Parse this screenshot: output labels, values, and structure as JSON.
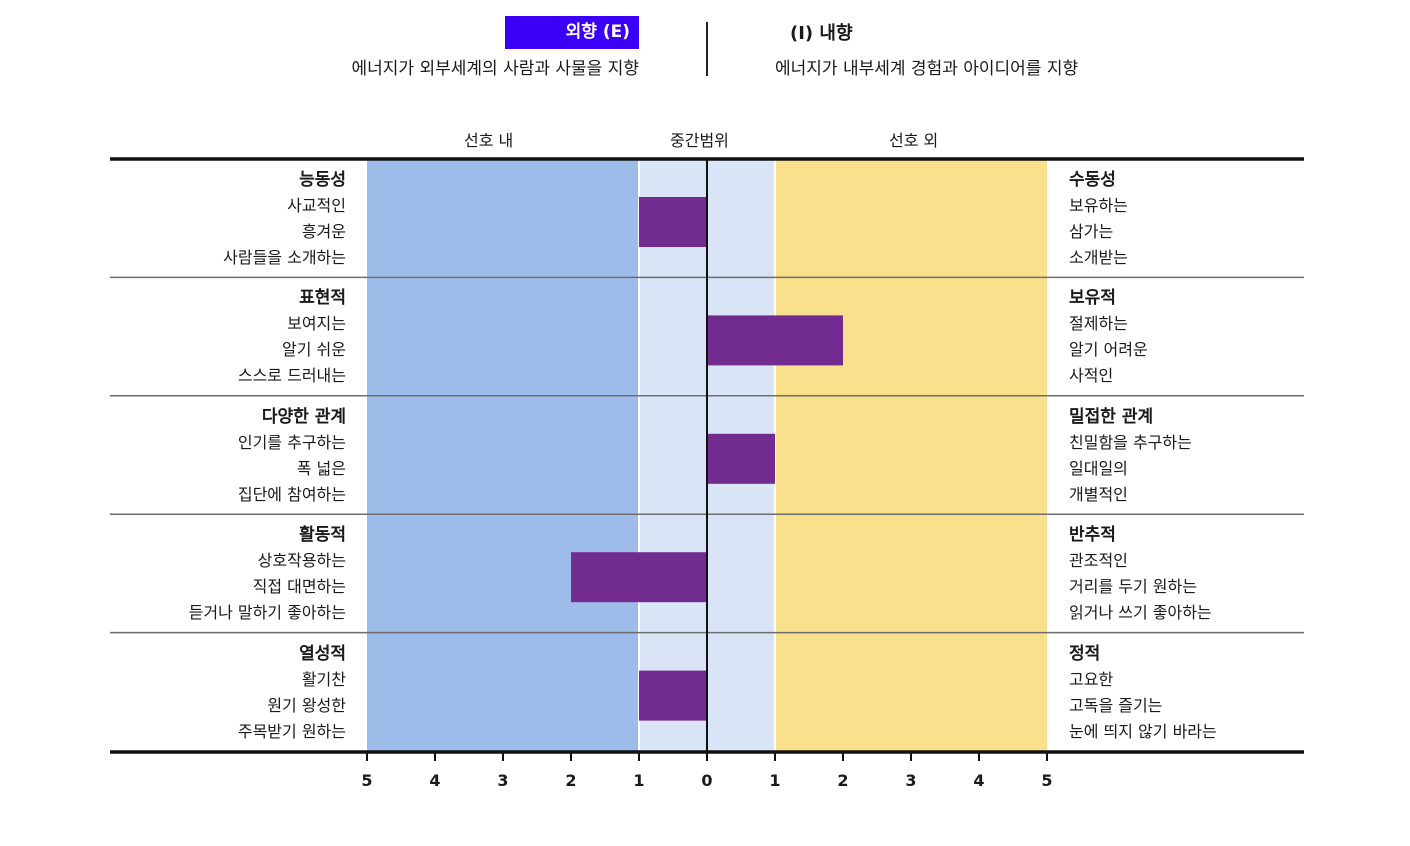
{
  "header": {
    "left_badge": "외향 (E)",
    "left_desc": "에너지가 외부세계의 사람과 사물을 지향",
    "right_label": "(I) 내향",
    "right_desc": "에너지가 내부세계 경험과 아이디어를 지향"
  },
  "bands": {
    "left": "선호 내",
    "middle": "중간범위",
    "right": "선호 외"
  },
  "colors": {
    "left_pref": "#9dbce9",
    "mid_range": "#d9e5f6",
    "right_pref": "#f9e08c",
    "bar": "#722b8f",
    "badge": "#3b00f6"
  },
  "rows": [
    {
      "left_title": "능동성",
      "left_lines": [
        "사교적인",
        "흥겨운",
        "사람들을 소개하는"
      ],
      "right_title": "수동성",
      "right_lines": [
        "보유하는",
        "삼가는",
        "소개받는"
      ]
    },
    {
      "left_title": "표현적",
      "left_lines": [
        "보여지는",
        "알기 쉬운",
        "스스로 드러내는"
      ],
      "right_title": "보유적",
      "right_lines": [
        "절제하는",
        "알기 어려운",
        "사적인"
      ]
    },
    {
      "left_title": "다양한 관계",
      "left_lines": [
        "인기를 추구하는",
        "폭 넓은",
        "집단에 참여하는"
      ],
      "right_title": "밀접한 관계",
      "right_lines": [
        "친밀함을 추구하는",
        "일대일의",
        "개별적인"
      ]
    },
    {
      "left_title": "활동적",
      "left_lines": [
        "상호작용하는",
        "직접 대면하는",
        "듣거나 말하기 좋아하는"
      ],
      "right_title": "반추적",
      "right_lines": [
        "관조적인",
        "거리를 두기 원하는",
        "읽거나 쓰기 좋아하는"
      ]
    },
    {
      "left_title": "열성적",
      "left_lines": [
        "활기찬",
        "원기 왕성한",
        "주목받기 원하는"
      ],
      "right_title": "정적",
      "right_lines": [
        "고요한",
        "고독을 즐기는",
        "눈에 띄지 않기 바라는"
      ]
    }
  ],
  "chart_data": {
    "type": "bar",
    "orientation": "horizontal",
    "categories": [
      "능동성 - 수동성",
      "표현적 - 보유적",
      "다양한 관계 - 밀접한 관계",
      "활동적 - 반추적",
      "열성적 - 정적"
    ],
    "values": [
      -1,
      2,
      1,
      -2,
      -1
    ],
    "xlim": [
      -5,
      5
    ],
    "tick_labels": [
      "5",
      "4",
      "3",
      "2",
      "1",
      "0",
      "1",
      "2",
      "3",
      "4",
      "5"
    ],
    "bands": [
      {
        "name": "선호 내",
        "range": [
          -5,
          -1
        ]
      },
      {
        "name": "중간범위",
        "range": [
          -1,
          1
        ]
      },
      {
        "name": "선호 외",
        "range": [
          1,
          5
        ]
      }
    ]
  }
}
